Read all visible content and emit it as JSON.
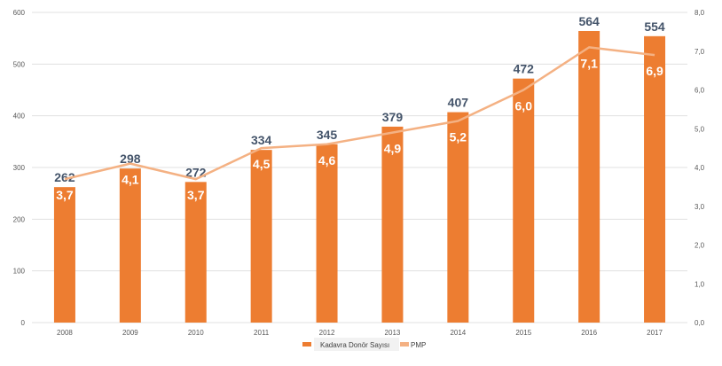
{
  "chart_data": {
    "type": "bar",
    "categories": [
      "2008",
      "2009",
      "2010",
      "2011",
      "2012",
      "2013",
      "2014",
      "2015",
      "2016",
      "2017"
    ],
    "series": [
      {
        "name": "Kadavra Donör Sayısı",
        "type": "bar",
        "axis": "left",
        "color": "#ed7d31",
        "values": [
          262,
          298,
          272,
          334,
          345,
          379,
          407,
          472,
          564,
          554
        ]
      },
      {
        "name": "PMP",
        "type": "line",
        "axis": "right",
        "color": "#f4b183",
        "values": [
          3.7,
          4.1,
          3.7,
          4.5,
          4.6,
          4.9,
          5.2,
          6.0,
          7.1,
          6.9
        ],
        "labels": [
          "3,7",
          "4,1",
          "3,7",
          "4,5",
          "4,6",
          "4,9",
          "5,2",
          "6,0",
          "7,1",
          "6,9"
        ]
      }
    ],
    "ylim": [
      0,
      600
    ],
    "yticks": [
      "0",
      "100",
      "200",
      "300",
      "400",
      "500",
      "600"
    ],
    "y2lim": [
      0,
      8
    ],
    "y2ticks": [
      "0,0",
      "1,0",
      "2,0",
      "3,0",
      "4,0",
      "5,0",
      "6,0",
      "7,0",
      "8,0"
    ],
    "grid": true,
    "legend": "bottom",
    "label_color": "#44546a"
  }
}
